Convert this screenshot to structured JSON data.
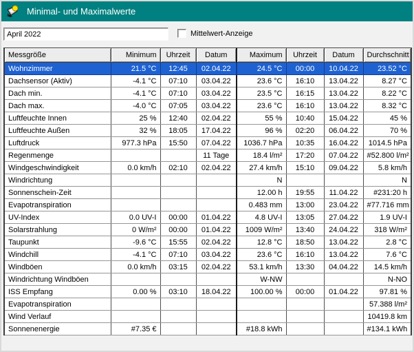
{
  "window": {
    "title": "Minimal- und Maximalwerte",
    "icon": "weather-station-icon"
  },
  "toolbar": {
    "period_value": "April 2022",
    "mittelwert_checkbox_label": "Mittelwert-Anzeige",
    "mittelwert_checked": false
  },
  "colors": {
    "titlebar": "#008080",
    "selection_blue": "#1E62D2",
    "header_bg": "#ECECEC",
    "window_bg": "#F1F1F1"
  },
  "table": {
    "columns": [
      "Messgröße",
      "Minimum",
      "Uhrzeit",
      "Datum",
      "Maximum",
      "Uhrzeit",
      "Datum",
      "Durchschnitt"
    ],
    "selected_row_index": 0,
    "rows": [
      [
        "Wohnzimmer",
        "21.5 °C",
        "12:45",
        "02.04.22",
        "24.5 °C",
        "00:00",
        "10.04.22",
        "23.52 °C"
      ],
      [
        "Dachsensor (Aktiv)",
        "-4.1 °C",
        "07:10",
        "03.04.22",
        "23.6 °C",
        "16:10",
        "13.04.22",
        "8.27 °C"
      ],
      [
        "Dach min.",
        "-4.1 °C",
        "07:10",
        "03.04.22",
        "23.5 °C",
        "16:15",
        "13.04.22",
        "8.22 °C"
      ],
      [
        "Dach max.",
        "-4.0 °C",
        "07:05",
        "03.04.22",
        "23.6 °C",
        "16:10",
        "13.04.22",
        "8.32 °C"
      ],
      [
        "Luftfeuchte Innen",
        "25 %",
        "12:40",
        "02.04.22",
        "55 %",
        "10:40",
        "15.04.22",
        "45 %"
      ],
      [
        "Luftfeuchte Außen",
        "32 %",
        "18:05",
        "17.04.22",
        "96 %",
        "02:20",
        "06.04.22",
        "70 %"
      ],
      [
        "Luftdruck",
        "977.3 hPa",
        "15:50",
        "07.04.22",
        "1036.7 hPa",
        "10:35",
        "16.04.22",
        "1014.5 hPa"
      ],
      [
        "Regenmenge",
        "",
        "",
        "11 Tage",
        "18.4 l/m²",
        "17:20",
        "07.04.22",
        "#52.800 l/m²"
      ],
      [
        "Windgeschwindigkeit",
        "0.0 km/h",
        "02:10",
        "02.04.22",
        "27.4 km/h",
        "15:10",
        "09.04.22",
        "5.8 km/h"
      ],
      [
        "Windrichtung",
        "",
        "",
        "",
        "N",
        "",
        "",
        "N"
      ],
      [
        "Sonnenschein-Zeit",
        "",
        "",
        "",
        "12.00 h",
        "19:55",
        "11.04.22",
        "#231:20 h"
      ],
      [
        "Evapotranspiration",
        "",
        "",
        "",
        "0.483 mm",
        "13:00",
        "23.04.22",
        "#77.716 mm"
      ],
      [
        "UV-Index",
        "0.0 UV-I",
        "00:00",
        "01.04.22",
        "4.8 UV-I",
        "13:05",
        "27.04.22",
        "1.9 UV-I"
      ],
      [
        "Solarstrahlung",
        "0 W/m²",
        "00:00",
        "01.04.22",
        "1009 W/m²",
        "13:40",
        "24.04.22",
        "318 W/m²"
      ],
      [
        "Taupunkt",
        "-9.6 °C",
        "15:55",
        "02.04.22",
        "12.8 °C",
        "18:50",
        "13.04.22",
        "2.8 °C"
      ],
      [
        "Windchill",
        "-4.1 °C",
        "07:10",
        "03.04.22",
        "23.6 °C",
        "16:10",
        "13.04.22",
        "7.6 °C"
      ],
      [
        "Windböen",
        "0.0 km/h",
        "03:15",
        "02.04.22",
        "53.1 km/h",
        "13:30",
        "04.04.22",
        "14.5 km/h"
      ],
      [
        "Windrichtung Windböen",
        "",
        "",
        "",
        "W-NW",
        "",
        "",
        "N-NO"
      ],
      [
        "ISS Empfang",
        "0.00 %",
        "03:10",
        "18.04.22",
        "100.00 %",
        "00:00",
        "01.04.22",
        "97.81 %"
      ],
      [
        "Evapotranspiration",
        "",
        "",
        "",
        "",
        "",
        "",
        "57.388 l/m²"
      ],
      [
        "Wind Verlauf",
        "",
        "",
        "",
        "",
        "",
        "",
        "10419.8 km"
      ],
      [
        "Sonnenenergie",
        "#7.35 €",
        "",
        "",
        "#18.8 kWh",
        "",
        "",
        "#134.1 kWh"
      ]
    ]
  }
}
